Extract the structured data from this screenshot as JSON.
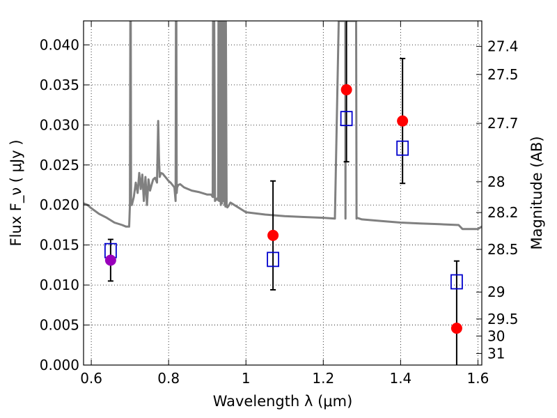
{
  "chart_data": {
    "type": "scatter",
    "title": "",
    "xlabel": "Wavelength  λ (μm)",
    "ylabel": "Flux  F_ν  ( μJy )",
    "y2label": "Magnitude (AB)",
    "xlim": [
      0.58,
      1.61
    ],
    "ylim": [
      0.0,
      0.043
    ],
    "grid": true,
    "x_ticks": [
      {
        "value": 0.6,
        "label": "0.6"
      },
      {
        "value": 0.8,
        "label": "0.8"
      },
      {
        "value": 1.0,
        "label": "1"
      },
      {
        "value": 1.2,
        "label": "1.2"
      },
      {
        "value": 1.4,
        "label": "1.4"
      },
      {
        "value": 1.6,
        "label": "1.6"
      }
    ],
    "y_ticks": [
      {
        "value": 0.0,
        "label": "0.000"
      },
      {
        "value": 0.005,
        "label": "0.005"
      },
      {
        "value": 0.01,
        "label": "0.010"
      },
      {
        "value": 0.015,
        "label": "0.015"
      },
      {
        "value": 0.02,
        "label": "0.020"
      },
      {
        "value": 0.025,
        "label": "0.025"
      },
      {
        "value": 0.03,
        "label": "0.030"
      },
      {
        "value": 0.035,
        "label": "0.035"
      },
      {
        "value": 0.04,
        "label": "0.040"
      }
    ],
    "y2_ticks": [
      {
        "value": 27.4,
        "label": "27.4"
      },
      {
        "value": 27.5,
        "label": "27.5"
      },
      {
        "value": 27.7,
        "label": "27.7"
      },
      {
        "value": 28.0,
        "label": "28"
      },
      {
        "value": 28.2,
        "label": "28.2"
      },
      {
        "value": 28.5,
        "label": "28.5"
      },
      {
        "value": 29.0,
        "label": "29"
      },
      {
        "value": 29.5,
        "label": "29.5"
      },
      {
        "value": 30.0,
        "label": "30"
      },
      {
        "value": 31.0,
        "label": "31"
      }
    ],
    "colors": {
      "model": "#808080",
      "observed": "#ff0000",
      "observed_special": "#9900bb",
      "synthetic": "#0000cc",
      "errorbar": "#000000",
      "grid": "#000000"
    },
    "series": [
      {
        "name": "model_spectrum",
        "kind": "line",
        "x": [
          0.58,
          0.59,
          0.6,
          0.62,
          0.64,
          0.66,
          0.68,
          0.69,
          0.698,
          0.7,
          0.701,
          0.702,
          0.703,
          0.705,
          0.71,
          0.715,
          0.72,
          0.724,
          0.728,
          0.732,
          0.736,
          0.74,
          0.744,
          0.748,
          0.752,
          0.756,
          0.76,
          0.765,
          0.77,
          0.773,
          0.775,
          0.777,
          0.78,
          0.785,
          0.79,
          0.795,
          0.8,
          0.805,
          0.81,
          0.815,
          0.818,
          0.819,
          0.82,
          0.821,
          0.822,
          0.825,
          0.83,
          0.84,
          0.86,
          0.88,
          0.9,
          0.91,
          0.914,
          0.915,
          0.916,
          0.918,
          0.92,
          0.925,
          0.928,
          0.929,
          0.93,
          0.931,
          0.933,
          0.935,
          0.936,
          0.937,
          0.938,
          0.94,
          0.941,
          0.942,
          0.943,
          0.945,
          0.946,
          0.947,
          0.948,
          0.95,
          0.952,
          0.955,
          0.96,
          0.98,
          1.0,
          1.05,
          1.1,
          1.15,
          1.2,
          1.23,
          1.24,
          1.241,
          1.242,
          1.243,
          1.25,
          1.255,
          1.257,
          1.2575,
          1.258,
          1.2585,
          1.259,
          1.265,
          1.27,
          1.28,
          1.285,
          1.286,
          1.287,
          1.3,
          1.35,
          1.4,
          1.45,
          1.5,
          1.55,
          1.56,
          1.58,
          1.6,
          1.61
        ],
        "y": [
          0.0202,
          0.02,
          0.0196,
          0.0189,
          0.0184,
          0.0178,
          0.0175,
          0.0173,
          0.0173,
          0.02,
          0.043,
          0.043,
          0.02,
          0.02,
          0.021,
          0.0228,
          0.0215,
          0.024,
          0.022,
          0.0238,
          0.0205,
          0.0235,
          0.02,
          0.0232,
          0.0218,
          0.0225,
          0.0232,
          0.0234,
          0.0228,
          0.0305,
          0.026,
          0.0235,
          0.024,
          0.0239,
          0.0236,
          0.0233,
          0.023,
          0.0228,
          0.0225,
          0.0222,
          0.0205,
          0.043,
          0.043,
          0.0215,
          0.0222,
          0.0225,
          0.0226,
          0.0222,
          0.0218,
          0.0216,
          0.0213,
          0.0213,
          0.021,
          0.043,
          0.021,
          0.043,
          0.0205,
          0.0208,
          0.0206,
          0.043,
          0.043,
          0.0205,
          0.043,
          0.02,
          0.043,
          0.043,
          0.0202,
          0.043,
          0.043,
          0.0205,
          0.043,
          0.02,
          0.043,
          0.0198,
          0.043,
          0.0198,
          0.0197,
          0.0199,
          0.0203,
          0.0197,
          0.0191,
          0.0188,
          0.0186,
          0.0185,
          0.0184,
          0.0183,
          0.043,
          0.043,
          0.043,
          0.043,
          0.043,
          0.043,
          0.043,
          0.0183,
          0.043,
          0.043,
          0.043,
          0.043,
          0.043,
          0.043,
          0.043,
          0.0183,
          0.0184,
          0.0182,
          0.018,
          0.0178,
          0.0177,
          0.0176,
          0.0175,
          0.017,
          0.017,
          0.017,
          0.0173
        ]
      },
      {
        "name": "observed",
        "kind": "points",
        "points": [
          {
            "x": 0.65,
            "y": 0.0131,
            "err_lo": 0.0026,
            "err_hi": 0.0026,
            "special": true
          },
          {
            "x": 1.07,
            "y": 0.0162,
            "err_lo": 0.0068,
            "err_hi": 0.0068,
            "special": false
          },
          {
            "x": 1.26,
            "y": 0.0344,
            "err_lo": 0.009,
            "err_hi": 0.009,
            "special": false
          },
          {
            "x": 1.405,
            "y": 0.0305,
            "err_lo": 0.0078,
            "err_hi": 0.0078,
            "special": false
          },
          {
            "x": 1.545,
            "y": 0.0046,
            "err_lo": 0.0084,
            "err_hi": 0.0084,
            "special": false
          }
        ]
      },
      {
        "name": "synthetic",
        "kind": "squares",
        "points": [
          {
            "x": 0.65,
            "y": 0.0143
          },
          {
            "x": 1.07,
            "y": 0.0132
          },
          {
            "x": 1.26,
            "y": 0.0308
          },
          {
            "x": 1.405,
            "y": 0.0271
          },
          {
            "x": 1.545,
            "y": 0.0104
          }
        ]
      }
    ]
  }
}
